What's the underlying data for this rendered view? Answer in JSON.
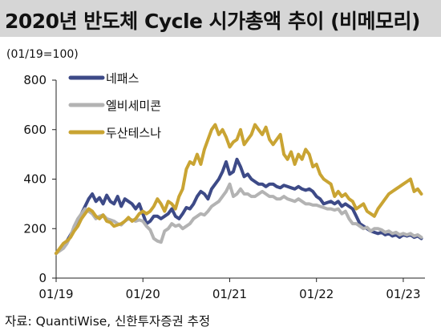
{
  "title": "2020년 반도체 Cycle 시가총액 추이 (비메모리)",
  "unit": "(01/19=100)",
  "source": "자료: QuantiWise, 신한투자증권 추정",
  "chart_data": {
    "type": "line",
    "ylim": [
      0,
      800
    ],
    "yticks": [
      0,
      200,
      400,
      600,
      800
    ],
    "xticks": [
      {
        "label": "01/19",
        "x": 0
      },
      {
        "label": "01/20",
        "x": 12
      },
      {
        "label": "01/21",
        "x": 24
      },
      {
        "label": "01/22",
        "x": 36
      },
      {
        "label": "01/23",
        "x": 48
      }
    ],
    "xlim": [
      0,
      51
    ],
    "legend_position": "top-left",
    "series": [
      {
        "name": "네패스",
        "color": "#3d4a87",
        "x": [
          0,
          0.5,
          1,
          1.5,
          2,
          2.5,
          3,
          3.5,
          4,
          4.5,
          5,
          5.5,
          6,
          6.5,
          7,
          7.5,
          8,
          8.5,
          9,
          9.5,
          10,
          10.5,
          11,
          11.5,
          12,
          12.5,
          13,
          13.5,
          14,
          14.5,
          15,
          15.5,
          16,
          16.5,
          17,
          17.5,
          18,
          18.5,
          19,
          19.5,
          20,
          20.5,
          21,
          21.5,
          22,
          22.5,
          23,
          23.5,
          24,
          24.5,
          25,
          25.5,
          26,
          26.5,
          27,
          27.5,
          28,
          28.5,
          29,
          29.5,
          30,
          30.5,
          31,
          31.5,
          32,
          32.5,
          33,
          33.5,
          34,
          34.5,
          35,
          35.5,
          36,
          36.5,
          37,
          37.5,
          38,
          38.5,
          39,
          39.5,
          40,
          40.5,
          41,
          41.5,
          42,
          42.5,
          43,
          43.5,
          44,
          44.5,
          45,
          45.5,
          46,
          46.5,
          47,
          47.5,
          48,
          48.5,
          49,
          49.5,
          50,
          50.5
        ],
        "values": [
          100,
          115,
          130,
          150,
          175,
          200,
          230,
          260,
          290,
          320,
          340,
          310,
          325,
          300,
          335,
          310,
          300,
          330,
          290,
          320,
          310,
          300,
          280,
          300,
          260,
          220,
          230,
          250,
          250,
          240,
          250,
          260,
          280,
          250,
          240,
          260,
          285,
          280,
          300,
          330,
          350,
          340,
          320,
          360,
          380,
          400,
          430,
          470,
          420,
          430,
          480,
          450,
          410,
          420,
          400,
          390,
          380,
          380,
          370,
          380,
          380,
          370,
          365,
          375,
          370,
          365,
          360,
          370,
          360,
          355,
          360,
          350,
          330,
          320,
          300,
          305,
          310,
          300,
          310,
          290,
          300,
          290,
          280,
          250,
          220,
          210,
          200,
          190,
          185,
          180,
          185,
          175,
          180,
          170,
          175,
          165,
          175,
          170,
          175,
          165,
          170,
          160
        ]
      },
      {
        "name": "엘비세미콘",
        "color": "#b3b3b3",
        "x": [
          0,
          0.5,
          1,
          1.5,
          2,
          2.5,
          3,
          3.5,
          4,
          4.5,
          5,
          5.5,
          6,
          6.5,
          7,
          7.5,
          8,
          8.5,
          9,
          9.5,
          10,
          10.5,
          11,
          11.5,
          12,
          12.5,
          13,
          13.5,
          14,
          14.5,
          15,
          15.5,
          16,
          16.5,
          17,
          17.5,
          18,
          18.5,
          19,
          19.5,
          20,
          20.5,
          21,
          21.5,
          22,
          22.5,
          23,
          23.5,
          24,
          24.5,
          25,
          25.5,
          26,
          26.5,
          27,
          27.5,
          28,
          28.5,
          29,
          29.5,
          30,
          30.5,
          31,
          31.5,
          32,
          32.5,
          33,
          33.5,
          34,
          34.5,
          35,
          35.5,
          36,
          36.5,
          37,
          37.5,
          38,
          38.5,
          39,
          39.5,
          40,
          40.5,
          41,
          41.5,
          42,
          42.5,
          43,
          43.5,
          44,
          44.5,
          45,
          45.5,
          46,
          46.5,
          47,
          47.5,
          48,
          48.5,
          49,
          49.5,
          50,
          50.5
        ],
        "values": [
          100,
          110,
          120,
          140,
          170,
          210,
          240,
          260,
          280,
          270,
          260,
          240,
          250,
          255,
          240,
          235,
          230,
          220,
          215,
          230,
          240,
          235,
          230,
          235,
          230,
          210,
          195,
          160,
          150,
          145,
          190,
          200,
          220,
          210,
          215,
          200,
          210,
          220,
          240,
          250,
          260,
          255,
          270,
          290,
          300,
          310,
          330,
          350,
          380,
          330,
          340,
          360,
          340,
          340,
          330,
          330,
          340,
          350,
          340,
          330,
          330,
          320,
          320,
          330,
          320,
          315,
          310,
          320,
          310,
          300,
          300,
          295,
          295,
          290,
          285,
          280,
          280,
          275,
          280,
          260,
          270,
          240,
          220,
          220,
          210,
          200,
          205,
          190,
          200,
          200,
          195,
          185,
          190,
          180,
          185,
          175,
          180,
          175,
          180,
          170,
          175,
          165
        ]
      },
      {
        "name": "두산테스나",
        "color": "#c9a433",
        "x": [
          0,
          0.5,
          1,
          1.5,
          2,
          2.5,
          3,
          3.5,
          4,
          4.5,
          5,
          5.5,
          6,
          6.5,
          7,
          7.5,
          8,
          8.5,
          9,
          9.5,
          10,
          10.5,
          11,
          11.5,
          12,
          12.5,
          13,
          13.5,
          14,
          14.5,
          15,
          15.5,
          16,
          16.5,
          17,
          17.5,
          18,
          18.5,
          19,
          19.5,
          20,
          20.5,
          21,
          21.5,
          22,
          22.5,
          23,
          23.5,
          24,
          24.5,
          25,
          25.5,
          26,
          26.5,
          27,
          27.5,
          28,
          28.5,
          29,
          29.5,
          30,
          30.5,
          31,
          31.5,
          32,
          32.5,
          33,
          33.5,
          34,
          34.5,
          35,
          35.5,
          36,
          36.5,
          37,
          37.5,
          38,
          38.5,
          39,
          39.5,
          40,
          40.5,
          41,
          41.5,
          42,
          42.5,
          43,
          43.5,
          44,
          44.5,
          45,
          45.5,
          46,
          46.5,
          47,
          47.5,
          48,
          48.5,
          49,
          49.5,
          50,
          50.5
        ],
        "values": [
          100,
          120,
          140,
          150,
          165,
          190,
          210,
          240,
          260,
          280,
          270,
          250,
          240,
          255,
          230,
          225,
          210,
          215,
          220,
          230,
          245,
          230,
          240,
          260,
          270,
          260,
          270,
          290,
          320,
          300,
          270,
          310,
          300,
          280,
          330,
          360,
          440,
          470,
          460,
          500,
          460,
          520,
          560,
          600,
          620,
          580,
          600,
          570,
          530,
          550,
          560,
          600,
          540,
          560,
          580,
          620,
          600,
          580,
          610,
          560,
          540,
          560,
          580,
          500,
          480,
          510,
          460,
          500,
          480,
          520,
          500,
          450,
          460,
          420,
          400,
          390,
          380,
          330,
          350,
          330,
          340,
          320,
          310,
          280,
          290,
          300,
          270,
          260,
          250,
          280,
          300,
          320,
          340,
          350,
          360,
          370,
          380,
          390,
          400,
          350,
          360,
          340
        ]
      }
    ]
  }
}
